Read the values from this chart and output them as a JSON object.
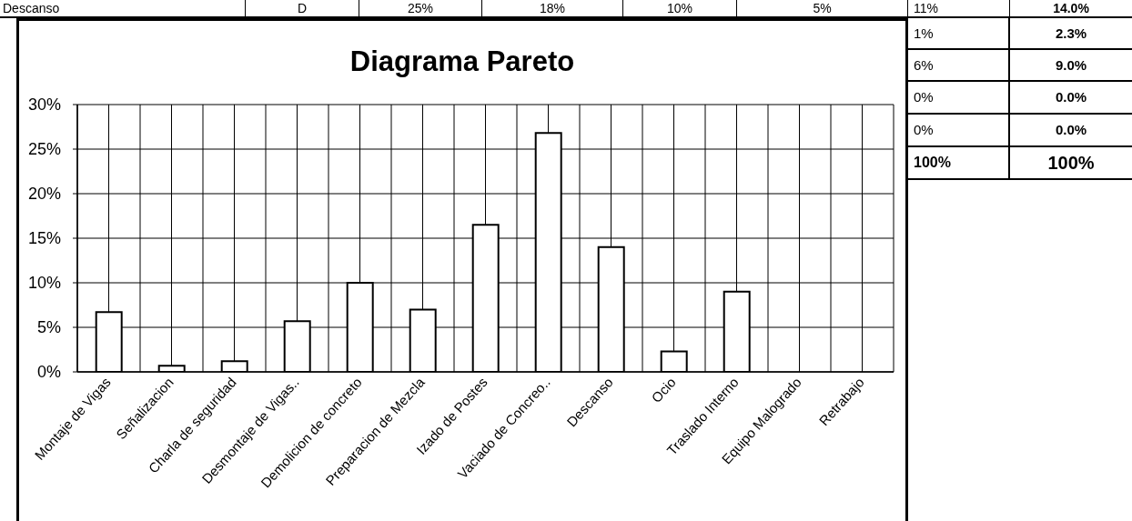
{
  "chart_data": [
    {
      "type": "other",
      "annotations": [
        "Descanso",
        "D",
        "25%",
        "18%",
        "10%",
        "5%",
        "11%",
        "14.0%"
      ]
    },
    {
      "type": "bar",
      "title": "Diagrama Pareto",
      "categories": [
        "Montaje de Vigas",
        "Señalizacion",
        "Charla de seguridad",
        "Desmontaje de Vigas..",
        "Demolicion de concreto",
        "Preparacion de Mezcla",
        "Izado de Postes",
        "Vaciado de Concreo..",
        "Descanso",
        "Ocio",
        "Traslado Interno",
        "Equipo Malogrado",
        "Retrabajo"
      ],
      "values": [
        6.7,
        0.7,
        1.2,
        5.7,
        10,
        7,
        16.5,
        26.8,
        14,
        2.3,
        9,
        0,
        0
      ],
      "color": "#ffffff",
      "ylim": [
        0,
        30
      ],
      "yticks": [
        {
          "value": 0,
          "label": "0%"
        },
        {
          "value": 5,
          "label": "5%"
        },
        {
          "value": 10,
          "label": "10%"
        },
        {
          "value": 15,
          "label": "15%"
        },
        {
          "value": 20,
          "label": "20%"
        },
        {
          "value": 25,
          "label": "25%"
        },
        {
          "value": 30,
          "label": "30%"
        }
      ],
      "grid": true
    },
    {
      "type": "other",
      "annotations": [
        "1%",
        "2.3%",
        "6%",
        "9.0%",
        "0%",
        "0.0%",
        "0%",
        "0.0%",
        "100%",
        "100%"
      ]
    }
  ]
}
